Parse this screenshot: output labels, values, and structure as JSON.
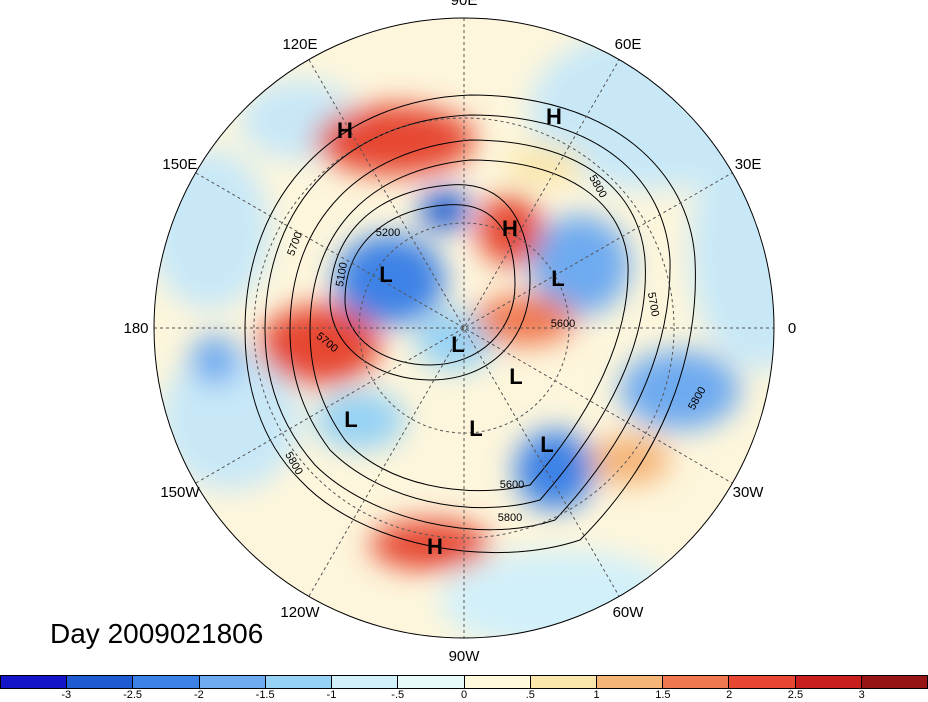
{
  "title": "Day 2009021806",
  "longitude_labels": [
    {
      "text": "90E",
      "angle": -90
    },
    {
      "text": "60E",
      "angle": -60
    },
    {
      "text": "30E",
      "angle": -30
    },
    {
      "text": "0",
      "angle": 0
    },
    {
      "text": "30W",
      "angle": 30
    },
    {
      "text": "60W",
      "angle": 60
    },
    {
      "text": "90W",
      "angle": 90
    },
    {
      "text": "120W",
      "angle": 120
    },
    {
      "text": "150W",
      "angle": 150
    },
    {
      "text": "180",
      "angle": 180
    },
    {
      "text": "150E",
      "angle": 210
    },
    {
      "text": "120E",
      "angle": 240
    }
  ],
  "pressure_systems": [
    {
      "type": "H",
      "where": "east asia north"
    },
    {
      "type": "H",
      "where": "siberia"
    },
    {
      "type": "H",
      "where": "arctic siberia"
    },
    {
      "type": "L",
      "where": "bering"
    },
    {
      "type": "L",
      "where": "scandinavia"
    },
    {
      "type": "L",
      "where": "arctic"
    },
    {
      "type": "L",
      "where": "hudson"
    },
    {
      "type": "L",
      "where": "gulf of alaska"
    },
    {
      "type": "L",
      "where": "great lakes"
    },
    {
      "type": "L",
      "where": "north atlantic"
    },
    {
      "type": "H",
      "where": "mexico"
    }
  ],
  "contour_labels": [
    "5200",
    "5100",
    "5700",
    "5700",
    "5800",
    "5800",
    "5600",
    "5700",
    "5800",
    "5600",
    "5800"
  ],
  "colorbar": {
    "colors": [
      "#1414c8",
      "#1e5ad2",
      "#3c82e6",
      "#6eaaf0",
      "#96d2f5",
      "#d2f0fa",
      "#e6fafa",
      "#fffadc",
      "#fae6aa",
      "#f5b478",
      "#f07850",
      "#e64632",
      "#c81e1e",
      "#961414"
    ],
    "ticks": [
      "-3",
      "-2.5",
      "-2",
      "-1.5",
      "-1",
      "-.5",
      "0",
      ".5",
      "1",
      "1.5",
      "2",
      "2.5",
      "3"
    ]
  }
}
